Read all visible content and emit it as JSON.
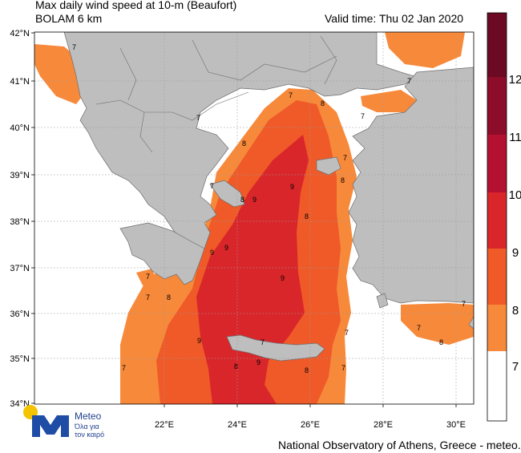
{
  "header": {
    "title_line1": "Max daily wind speed at 10-m (Beaufort)",
    "title_line2": "BOLAM 6 km",
    "valid_time": "Valid time: Thu 02 Jan 2020"
  },
  "axes": {
    "lat_labels": [
      "42°N",
      "41°N",
      "40°N",
      "39°N",
      "38°N",
      "37°N",
      "36°N",
      "35°N",
      "34°N"
    ],
    "lon_labels": [
      "22°E",
      "24°E",
      "26°E",
      "28°E",
      "30°E"
    ]
  },
  "colorbar": {
    "levels": [
      "7",
      "8",
      "9",
      "10",
      "11",
      "12"
    ],
    "colors": [
      "#ffffff",
      "#f7893b",
      "#ef5a28",
      "#d9262a",
      "#b4102f",
      "#8d0c2a",
      "#6b0a22"
    ]
  },
  "map_labels": [
    "7",
    "8",
    "9"
  ],
  "logo": {
    "name": "Meteo",
    "tagline_line1": "Όλα για",
    "tagline_line2": "τον καιρό"
  },
  "footer": {
    "credit": "National Observatory of Athens, Greece - meteo.gr"
  }
}
